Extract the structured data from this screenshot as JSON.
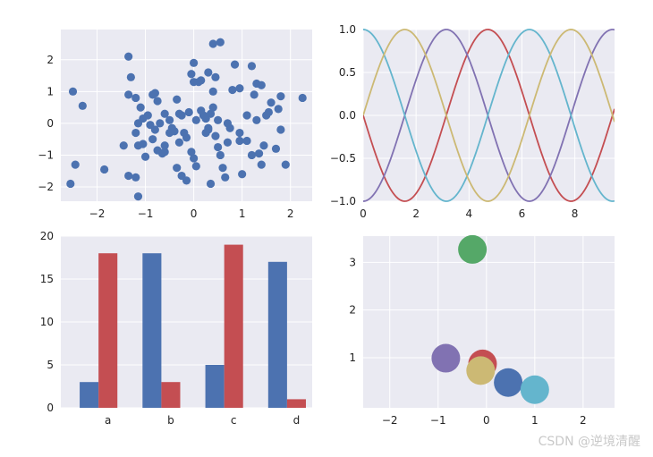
{
  "figure": {
    "background": "#ffffff",
    "axes_facecolor": "#eaeaf2",
    "grid_color": "#ffffff",
    "palette": [
      "#4c72b0",
      "#c44e52",
      "#8172b2",
      "#64b5cd",
      "#ccb974",
      "#55a868"
    ]
  },
  "chart_data": [
    {
      "type": "scatter",
      "title": "",
      "xlabel": "",
      "ylabel": "",
      "xlim": [
        -2.75,
        2.45
      ],
      "ylim": [
        -2.45,
        2.95
      ],
      "xticks": [
        -2,
        -1,
        0,
        1,
        2
      ],
      "yticks": [
        -2,
        -1,
        0,
        1,
        2
      ],
      "grid": true,
      "series": [
        {
          "color": "#4c72b0",
          "points": [
            [
              -2.5,
              1.0
            ],
            [
              -2.3,
              0.55
            ],
            [
              -2.55,
              -1.9
            ],
            [
              -2.45,
              -1.3
            ],
            [
              -1.85,
              -1.45
            ],
            [
              -1.35,
              2.1
            ],
            [
              -1.3,
              1.45
            ],
            [
              -1.45,
              -0.7
            ],
            [
              -1.35,
              0.9
            ],
            [
              -1.2,
              0.8
            ],
            [
              -1.15,
              0.0
            ],
            [
              -1.1,
              0.5
            ],
            [
              -1.2,
              -0.3
            ],
            [
              -1.05,
              -0.65
            ],
            [
              -1.15,
              -0.7
            ],
            [
              -1.05,
              0.15
            ],
            [
              -1.0,
              -1.05
            ],
            [
              -1.2,
              -1.7
            ],
            [
              -1.15,
              -2.3
            ],
            [
              -1.35,
              -1.65
            ],
            [
              -0.9,
              -0.05
            ],
            [
              -0.95,
              0.25
            ],
            [
              -0.85,
              0.9
            ],
            [
              -0.8,
              0.95
            ],
            [
              -0.75,
              0.7
            ],
            [
              -0.7,
              0.0
            ],
            [
              -0.85,
              -0.5
            ],
            [
              -0.8,
              -0.2
            ],
            [
              -0.75,
              -0.85
            ],
            [
              -0.65,
              -0.95
            ],
            [
              -0.6,
              -0.7
            ],
            [
              -0.6,
              0.3
            ],
            [
              -0.5,
              0.1
            ],
            [
              -0.45,
              -0.15
            ],
            [
              -0.5,
              -0.3
            ],
            [
              -0.4,
              -0.25
            ],
            [
              -0.35,
              0.75
            ],
            [
              -0.3,
              0.3
            ],
            [
              -0.25,
              0.25
            ],
            [
              -0.3,
              -0.6
            ],
            [
              -0.35,
              -1.4
            ],
            [
              -0.25,
              -1.65
            ],
            [
              -0.15,
              -1.8
            ],
            [
              -0.15,
              -0.45
            ],
            [
              -0.2,
              -0.3
            ],
            [
              -0.1,
              0.35
            ],
            [
              -0.05,
              1.55
            ],
            [
              0.0,
              1.9
            ],
            [
              0.0,
              1.3
            ],
            [
              -0.05,
              -0.9
            ],
            [
              0.0,
              -1.1
            ],
            [
              0.05,
              -1.35
            ],
            [
              0.05,
              0.1
            ],
            [
              0.1,
              1.3
            ],
            [
              0.15,
              1.35
            ],
            [
              0.15,
              0.4
            ],
            [
              0.2,
              0.25
            ],
            [
              0.25,
              0.15
            ],
            [
              0.25,
              -0.3
            ],
            [
              0.3,
              -0.2
            ],
            [
              0.3,
              -0.15
            ],
            [
              0.35,
              -1.9
            ],
            [
              0.35,
              0.3
            ],
            [
              0.4,
              0.5
            ],
            [
              0.4,
              1.0
            ],
            [
              0.45,
              1.45
            ],
            [
              0.4,
              2.5
            ],
            [
              0.55,
              2.55
            ],
            [
              0.3,
              1.6
            ],
            [
              0.5,
              0.1
            ],
            [
              0.45,
              -0.4
            ],
            [
              0.5,
              -0.75
            ],
            [
              0.55,
              -1.0
            ],
            [
              0.6,
              -1.4
            ],
            [
              0.65,
              -1.7
            ],
            [
              0.7,
              -0.6
            ],
            [
              0.75,
              -0.15
            ],
            [
              0.8,
              1.05
            ],
            [
              0.85,
              1.85
            ],
            [
              0.95,
              1.1
            ],
            [
              0.95,
              -0.3
            ],
            [
              0.95,
              -0.55
            ],
            [
              1.0,
              -1.6
            ],
            [
              1.1,
              0.25
            ],
            [
              1.1,
              -0.55
            ],
            [
              1.2,
              1.8
            ],
            [
              1.25,
              0.9
            ],
            [
              1.3,
              1.25
            ],
            [
              1.3,
              0.1
            ],
            [
              1.35,
              -0.95
            ],
            [
              1.4,
              1.2
            ],
            [
              1.4,
              -1.3
            ],
            [
              1.45,
              -0.7
            ],
            [
              1.5,
              0.25
            ],
            [
              1.55,
              0.35
            ],
            [
              1.6,
              0.65
            ],
            [
              1.7,
              -0.8
            ],
            [
              1.75,
              0.45
            ],
            [
              1.8,
              0.85
            ],
            [
              1.8,
              -0.2
            ],
            [
              1.9,
              -1.3
            ],
            [
              2.25,
              0.8
            ],
            [
              0.25,
              0.15
            ],
            [
              -0.6,
              -0.9
            ],
            [
              1.2,
              -1.0
            ],
            [
              0.7,
              0.0
            ]
          ]
        }
      ]
    },
    {
      "type": "line",
      "title": "",
      "xlabel": "",
      "ylabel": "",
      "xlim": [
        0,
        9.5
      ],
      "ylim": [
        -1.0,
        1.0
      ],
      "xticks": [
        0,
        2,
        4,
        6,
        8
      ],
      "yticks": [
        -1.0,
        -0.5,
        0.0,
        0.5,
        1.0
      ],
      "ytick_labels": [
        "−1.0",
        "−0.5",
        "0.0",
        "0.5",
        "1.0"
      ],
      "grid": true,
      "series": [
        {
          "function": "-sin(x)",
          "color": "#c44e52"
        },
        {
          "function": "-cos(x)",
          "color": "#8172b2"
        },
        {
          "function": "cos(x)",
          "color": "#64b5cd"
        },
        {
          "function": "sin(x)",
          "color": "#ccb974"
        }
      ]
    },
    {
      "type": "bar",
      "title": "",
      "xlabel": "",
      "ylabel": "",
      "categories": [
        "a",
        "b",
        "c",
        "d"
      ],
      "ylim": [
        0,
        20
      ],
      "yticks": [
        0,
        5,
        10,
        15,
        20
      ],
      "grid": true,
      "series": [
        {
          "values": [
            3,
            18,
            5,
            17
          ],
          "color": "#4c72b0"
        },
        {
          "values": [
            18,
            3,
            19,
            1
          ],
          "color": "#c44e52"
        }
      ]
    },
    {
      "type": "scatter",
      "title": "",
      "xlabel": "",
      "ylabel": "",
      "xlim": [
        -2.55,
        2.65
      ],
      "ylim": [
        -0.05,
        3.55
      ],
      "xticks": [
        -2,
        -1,
        0,
        1,
        2
      ],
      "yticks": [
        1,
        2,
        3
      ],
      "grid": true,
      "series": [
        {
          "points": [
            [
              -0.29,
              3.27
            ]
          ],
          "color": "#55a868"
        },
        {
          "points": [
            [
              -0.08,
              0.87
            ]
          ],
          "color": "#c44e52"
        },
        {
          "points": [
            [
              -0.84,
              0.99
            ]
          ],
          "color": "#8172b2"
        },
        {
          "points": [
            [
              -0.12,
              0.73
            ]
          ],
          "color": "#ccb974"
        },
        {
          "points": [
            [
              0.45,
              0.48
            ]
          ],
          "color": "#4c72b0"
        },
        {
          "points": [
            [
              1.0,
              0.33
            ]
          ],
          "color": "#64b5cd"
        }
      ]
    }
  ],
  "watermark": "CSDN @逆境清醒"
}
